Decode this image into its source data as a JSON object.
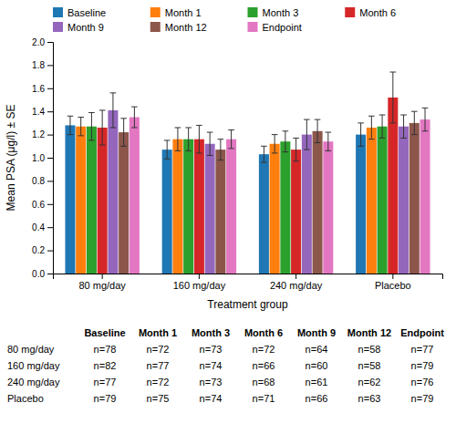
{
  "chart_data": {
    "type": "bar",
    "categories": [
      "80 mg/day",
      "160 mg/day",
      "240 mg/day",
      "Placebo"
    ],
    "series": [
      {
        "name": "Baseline",
        "values": [
          1.28,
          1.07,
          1.03,
          1.2
        ],
        "errors": [
          0.08,
          0.08,
          0.07,
          0.1
        ]
      },
      {
        "name": "Month 1",
        "values": [
          1.27,
          1.16,
          1.12,
          1.26
        ],
        "errors": [
          0.08,
          0.1,
          0.08,
          0.1
        ]
      },
      {
        "name": "Month 3",
        "values": [
          1.27,
          1.16,
          1.14,
          1.27
        ],
        "errors": [
          0.12,
          0.1,
          0.09,
          0.1
        ]
      },
      {
        "name": "Month 6",
        "values": [
          1.26,
          1.16,
          1.07,
          1.52
        ],
        "errors": [
          0.15,
          0.12,
          0.1,
          0.22
        ]
      },
      {
        "name": "Month 9",
        "values": [
          1.41,
          1.12,
          1.2,
          1.27
        ],
        "errors": [
          0.15,
          0.1,
          0.13,
          0.1
        ]
      },
      {
        "name": "Month 12",
        "values": [
          1.22,
          1.07,
          1.23,
          1.3
        ],
        "errors": [
          0.12,
          0.09,
          0.1,
          0.1
        ]
      },
      {
        "name": "Endpoint",
        "values": [
          1.35,
          1.16,
          1.14,
          1.33
        ],
        "errors": [
          0.09,
          0.08,
          0.08,
          0.1
        ]
      }
    ],
    "xlabel": "Treatment group",
    "ylabel": "Mean PSA (μg/l) ± SE",
    "ylim": [
      0.0,
      2.0
    ],
    "yticks": [
      {
        "value": 0,
        "label": "0.0"
      },
      0.2,
      0.4,
      0.6,
      0.8,
      {
        "value": 1,
        "label": "1.0"
      },
      1.2,
      1.4,
      1.6,
      1.8,
      {
        "value": 2,
        "label": "2.0"
      }
    ],
    "grid": false,
    "legend": "top",
    "table": {
      "rows": [
        "80 mg/day",
        "160 mg/day",
        "240 mg/day",
        "Placebo"
      ],
      "columns": [
        "Baseline",
        "Month 1",
        "Month 3",
        "Month 6",
        "Month 9",
        "Month 12",
        "Endpoint"
      ],
      "cells": [
        [
          "n=78",
          "n=72",
          "n=73",
          "n=72",
          "n=64",
          "n=58",
          "n=77"
        ],
        [
          "n=82",
          "n=77",
          "n=74",
          "n=66",
          "n=60",
          "n=58",
          "n=79"
        ],
        [
          "n=77",
          "n=72",
          "n=73",
          "n=68",
          "n=61",
          "n=62",
          "n=76"
        ],
        [
          "n=79",
          "n=75",
          "n=74",
          "n=71",
          "n=66",
          "n=63",
          "n=79"
        ]
      ]
    }
  }
}
